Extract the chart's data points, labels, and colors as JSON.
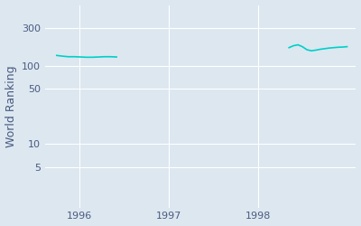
{
  "ylabel": "World Ranking",
  "bg_color": "#dce7f0",
  "line_color": "#00d0c8",
  "line_width": 1.2,
  "yticks": [
    5,
    10,
    50,
    100,
    300
  ],
  "ylim": [
    1.5,
    600
  ],
  "xlim": [
    1995.62,
    1999.1
  ],
  "xtick_years": [
    1996,
    1997,
    1998
  ],
  "segment1_x": [
    1995.75,
    1995.82,
    1995.88,
    1995.95,
    1996.02,
    1996.08,
    1996.15,
    1996.22,
    1996.28,
    1996.35,
    1996.42
  ],
  "segment1_y": [
    135,
    132,
    130,
    130,
    129,
    128,
    128,
    129,
    130,
    130,
    129
  ],
  "segment2_x": [
    1998.35,
    1998.4,
    1998.45,
    1998.5,
    1998.55,
    1998.6,
    1998.65,
    1998.7,
    1998.75,
    1998.8,
    1998.85,
    1998.9,
    1998.95,
    1999.0
  ],
  "segment2_y": [
    170,
    180,
    185,
    175,
    160,
    155,
    158,
    162,
    165,
    168,
    170,
    172,
    173,
    175
  ],
  "tick_color": "#4a5a80",
  "tick_fontsize": 8,
  "ylabel_fontsize": 9,
  "ylabel_color": "#4a5a80"
}
